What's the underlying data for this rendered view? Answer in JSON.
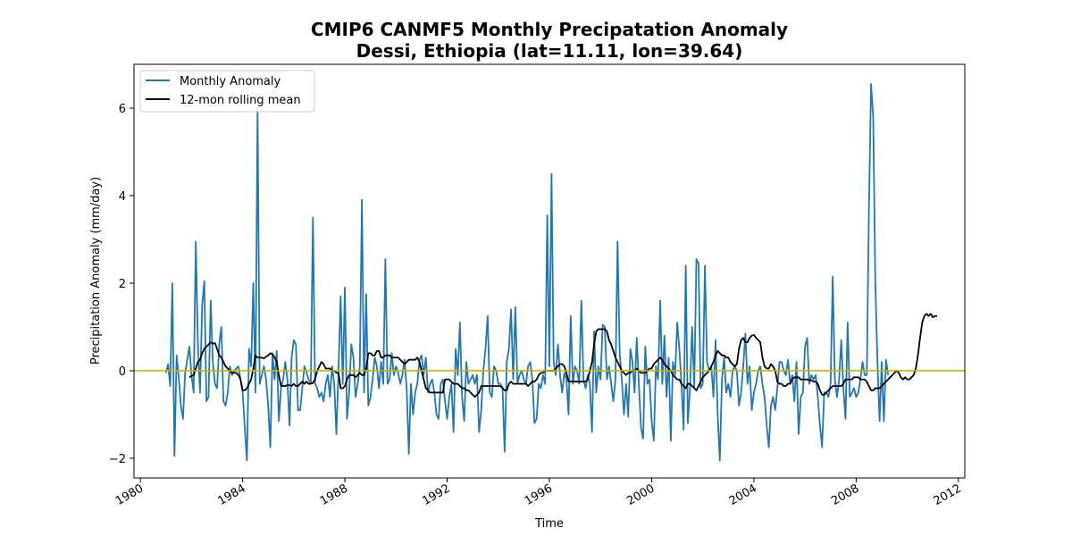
{
  "chart_data": {
    "type": "line",
    "title": "CMIP6 CANMF5 Monthly Precipatation Anomaly",
    "subtitle": "Dessi, Ethiopia (lat=11.11, lon=39.64)",
    "xlabel": "Time",
    "ylabel": "Precipitation Anomaly (mm/day)",
    "xlim": [
      1979.75,
      2012.25
    ],
    "ylim": [
      -2.45,
      7.0
    ],
    "x_ticks": [
      "1980",
      "1984",
      "1988",
      "1992",
      "1996",
      "2000",
      "2004",
      "2008",
      "2012"
    ],
    "y_ticks": [
      "−2",
      "0",
      "2",
      "4",
      "6"
    ],
    "legend": {
      "placement": "upper-left",
      "entries": [
        "Monthly Anomaly",
        "12-mon rolling mean"
      ]
    },
    "zero_line": {
      "y": 0,
      "color": "#c8b400"
    },
    "grid": false,
    "series": [
      {
        "name": "Monthly Anomaly",
        "color": "#1f77b4",
        "start": 1981.0,
        "step_months": 1,
        "values": [
          -0.05,
          0.15,
          -0.35,
          2.0,
          -1.95,
          0.35,
          -0.15,
          -0.8,
          -1.1,
          -0.05,
          0.25,
          0.55,
          -0.1,
          -0.5,
          2.95,
          0.6,
          -0.5,
          1.5,
          2.05,
          -0.7,
          -0.6,
          1.6,
          0.2,
          -0.3,
          -0.4,
          0.6,
          1.0,
          -0.7,
          -0.8,
          -0.5,
          0.1,
          -0.1,
          0.0,
          0.05,
          0.1,
          -0.2,
          -0.5,
          -1.3,
          -2.05,
          0.5,
          0.1,
          2.0,
          -0.5,
          6.0,
          -0.3,
          -0.1,
          0.1,
          -0.2,
          -0.8,
          -1.75,
          0.4,
          -0.2,
          0.45,
          -1.15,
          -0.4,
          -0.2,
          0.2,
          -0.2,
          -1.25,
          0.3,
          0.7,
          0.6,
          -0.9,
          -0.9,
          -0.4,
          0.1,
          -0.05,
          -0.2,
          -0.3,
          3.5,
          -0.3,
          -0.4,
          -0.6,
          -0.5,
          -0.7,
          -0.3,
          -0.1,
          -0.6,
          0.1,
          -0.3,
          -1.45,
          0.0,
          1.7,
          -0.3,
          1.9,
          -1.1,
          -0.5,
          0.6,
          0.3,
          -0.6,
          -0.3,
          0.1,
          3.9,
          -0.5,
          1.75,
          -0.8,
          -0.6,
          -0.2,
          0.3,
          0.1,
          -0.4,
          0.2,
          -0.3,
          2.55,
          -0.3,
          -0.2,
          0.4,
          -0.1,
          0.1,
          -0.05,
          -0.3,
          -0.1,
          0.25,
          -0.4,
          -1.9,
          -0.3,
          -1.0,
          -0.5,
          -0.3,
          0.25,
          0.35,
          -0.1,
          0.3,
          -0.5,
          -0.3,
          -0.2,
          -0.5,
          -1.0,
          -1.1,
          -0.3,
          -0.2,
          -0.7,
          -1.1,
          -0.6,
          -0.3,
          -1.4,
          0.5,
          -0.1,
          1.1,
          -0.6,
          -1.15,
          0.2,
          -0.3,
          -0.2,
          -0.1,
          -0.3,
          -0.1,
          -1.4,
          -0.9,
          0.0,
          0.5,
          1.25,
          -0.5,
          -0.6,
          0.1,
          0.0,
          -0.3,
          -0.3,
          -0.4,
          -1.85,
          0.2,
          0.5,
          1.4,
          -0.2,
          1.45,
          -0.3,
          -0.1,
          0.0,
          -0.2,
          -0.3,
          0.1,
          0.2,
          -0.2,
          -1.2,
          -1.1,
          -0.3,
          -0.4,
          -0.1,
          -0.3,
          3.55,
          0.1,
          4.5,
          0.2,
          -0.1,
          0.6,
          -0.1,
          -0.5,
          -0.05,
          -0.2,
          -1.0,
          1.25,
          -0.3,
          0.1,
          0.0,
          -0.3,
          1.6,
          -0.2,
          -0.4,
          -0.1,
          -0.3,
          -1.4,
          0.9,
          -0.5,
          0.1,
          -0.2,
          1.05,
          1.0,
          -0.2,
          0.1,
          -0.3,
          -0.7,
          -0.2,
          2.95,
          0.4,
          -0.2,
          -1.0,
          -0.3,
          -1.05,
          0.5,
          0.2,
          -0.5,
          0.75,
          -0.3,
          -1.3,
          -1.55,
          0.55,
          -0.3,
          -0.2,
          -1.15,
          -1.6,
          0.1,
          -0.2,
          1.6,
          -0.3,
          0.8,
          -0.6,
          0.3,
          -1.6,
          0.2,
          -0.1,
          1.1,
          0.5,
          -0.3,
          -1.35,
          2.4,
          -1.2,
          -0.4,
          1.0,
          -0.4,
          2.55,
          2.45,
          -0.4,
          -0.3,
          2.4,
          0.2,
          0.0,
          0.1,
          -0.6,
          0.7,
          -1.0,
          -2.05,
          -0.2,
          0.3,
          -0.5,
          -0.3,
          -0.6,
          0.0,
          0.1,
          0.0,
          -0.8,
          -0.5,
          0.1,
          0.85,
          -0.3,
          0.1,
          -0.9,
          -0.5,
          -0.3,
          0.0,
          0.1,
          -0.3,
          -0.6,
          -1.25,
          -1.75,
          -0.8,
          -0.6,
          -0.9,
          -0.4,
          0.2,
          0.2,
          0.0,
          -0.1,
          0.25,
          -0.3,
          -0.1,
          -0.7,
          0.2,
          -1.45,
          -0.6,
          -0.5,
          0.55,
          0.75,
          -0.3,
          -0.1,
          -0.2,
          -0.1,
          -0.6,
          -1.25,
          -1.75,
          -0.5,
          -0.5,
          -0.6,
          -0.3,
          2.15,
          -0.2,
          -0.6,
          -0.2,
          0.7,
          -0.4,
          -1.1,
          1.1,
          -0.6,
          -0.5,
          -0.4,
          -0.6,
          -0.5,
          -0.2,
          0.2,
          -0.1,
          -0.1,
          3.7,
          6.55,
          5.8,
          2.0,
          0.2,
          -1.15,
          0.2,
          -1.15,
          0.25,
          -0.1
        ]
      },
      {
        "name": "12-mon rolling mean",
        "color": "#000000",
        "start": 1981.9167,
        "step_months": 1,
        "values": [
          -0.15,
          -0.12,
          -0.1,
          0.05,
          0.2,
          0.25,
          0.4,
          0.5,
          0.55,
          0.6,
          0.65,
          0.62,
          0.63,
          0.5,
          0.35,
          0.3,
          0.2,
          0.1,
          0.05,
          0.0,
          -0.05,
          -0.05,
          -0.05,
          -0.1,
          -0.2,
          -0.45,
          -0.45,
          -0.4,
          -0.3,
          -0.2,
          0.05,
          0.35,
          0.3,
          0.3,
          0.3,
          0.28,
          0.32,
          0.35,
          0.4,
          0.38,
          0.3,
          0.2,
          -0.1,
          -0.35,
          -0.35,
          -0.35,
          -0.33,
          -0.33,
          -0.35,
          -0.3,
          -0.35,
          -0.35,
          -0.3,
          -0.25,
          -0.3,
          -0.25,
          -0.3,
          -0.3,
          -0.28,
          -0.2,
          0.0,
          0.1,
          0.2,
          0.15,
          0.05,
          0.05,
          0.05,
          0.0,
          0.0,
          -0.05,
          -0.05,
          -0.4,
          -0.4,
          -0.35,
          -0.2,
          -0.1,
          -0.1,
          -0.1,
          -0.15,
          -0.1,
          -0.05,
          -0.1,
          -0.1,
          0.05,
          0.4,
          0.4,
          0.35,
          0.35,
          0.45,
          0.45,
          0.3,
          0.3,
          0.35,
          0.35,
          0.35,
          0.3,
          0.3,
          0.3,
          0.3,
          0.25,
          0.2,
          0.15,
          0.2,
          0.25,
          0.25,
          0.25,
          0.25,
          0.3,
          0.2,
          0.0,
          -0.2,
          -0.4,
          -0.45,
          -0.5,
          -0.5,
          -0.5,
          -0.5,
          -0.5,
          -0.5,
          -0.5,
          -0.2,
          -0.2,
          -0.2,
          -0.25,
          -0.3,
          -0.3,
          -0.3,
          -0.35,
          -0.4,
          -0.4,
          -0.45,
          -0.45,
          -0.5,
          -0.55,
          -0.6,
          -0.55,
          -0.5,
          -0.35,
          -0.35,
          -0.35,
          -0.35,
          -0.35,
          -0.35,
          -0.35,
          -0.35,
          -0.35,
          -0.35,
          -0.4,
          -0.45,
          -0.45,
          -0.3,
          -0.25,
          -0.3,
          -0.3,
          -0.3,
          -0.3,
          -0.3,
          -0.3,
          -0.3,
          -0.35,
          -0.3,
          -0.25,
          -0.25,
          -0.2,
          -0.1,
          -0.05,
          -0.05,
          0.0,
          0.0,
          0.0,
          0.0,
          0.0,
          0.05,
          0.1,
          0.15,
          0.15,
          0.1,
          -0.05,
          -0.25,
          -0.25,
          -0.25,
          -0.25,
          -0.25,
          -0.25,
          -0.25,
          -0.25,
          -0.25,
          -0.2,
          0.0,
          0.2,
          0.6,
          0.9,
          0.95,
          0.95,
          0.95,
          0.95,
          0.9,
          0.7,
          0.6,
          0.45,
          0.3,
          0.2,
          0.1,
          0.0,
          -0.05,
          -0.1,
          -0.05,
          -0.05,
          0.0,
          0.0,
          0.05,
          0.0,
          -0.05,
          -0.05,
          -0.05,
          0.0,
          0.05,
          0.05,
          0.15,
          0.2,
          0.25,
          0.3,
          0.25,
          0.15,
          0.1,
          0.05,
          0.0,
          -0.1,
          -0.15,
          -0.2,
          -0.2,
          -0.3,
          -0.35,
          -0.4,
          -0.3,
          -0.3,
          -0.35,
          -0.4,
          -0.45,
          -0.35,
          -0.25,
          -0.15,
          -0.1,
          -0.05,
          0.0,
          0.1,
          0.2,
          0.35,
          0.45,
          0.4,
          0.35,
          0.35,
          0.3,
          0.3,
          0.2,
          0.15,
          0.1,
          0.15,
          0.5,
          0.7,
          0.75,
          0.65,
          0.65,
          0.75,
          0.8,
          0.82,
          0.75,
          0.7,
          0.65,
          0.3,
          0.1,
          0.05,
          0.05,
          0.15,
          0.1,
          0.0,
          -0.25,
          -0.3,
          -0.3,
          -0.35,
          -0.35,
          -0.3,
          -0.3,
          -0.2,
          -0.15,
          -0.15,
          -0.15,
          -0.2,
          -0.2,
          -0.2,
          -0.2,
          -0.22,
          -0.22,
          -0.25,
          -0.25,
          -0.3,
          -0.45,
          -0.55,
          -0.55,
          -0.5,
          -0.45,
          -0.4,
          -0.35,
          -0.35,
          -0.35,
          -0.35,
          -0.35,
          -0.3,
          -0.2,
          -0.2,
          -0.2,
          -0.2,
          -0.15,
          -0.15,
          -0.15,
          -0.2,
          -0.2,
          -0.2,
          -0.25,
          -0.35,
          -0.45,
          -0.45,
          -0.4,
          -0.4,
          -0.4,
          -0.35,
          -0.3,
          -0.25,
          -0.2,
          -0.15,
          -0.1,
          -0.05,
          0.0,
          -0.05,
          -0.15,
          -0.2,
          -0.15,
          -0.2,
          -0.2,
          -0.15,
          -0.1,
          0.05,
          0.35,
          0.75,
          1.1,
          1.25,
          1.3,
          1.25,
          1.3,
          1.22,
          1.25,
          1.25
        ]
      }
    ]
  }
}
